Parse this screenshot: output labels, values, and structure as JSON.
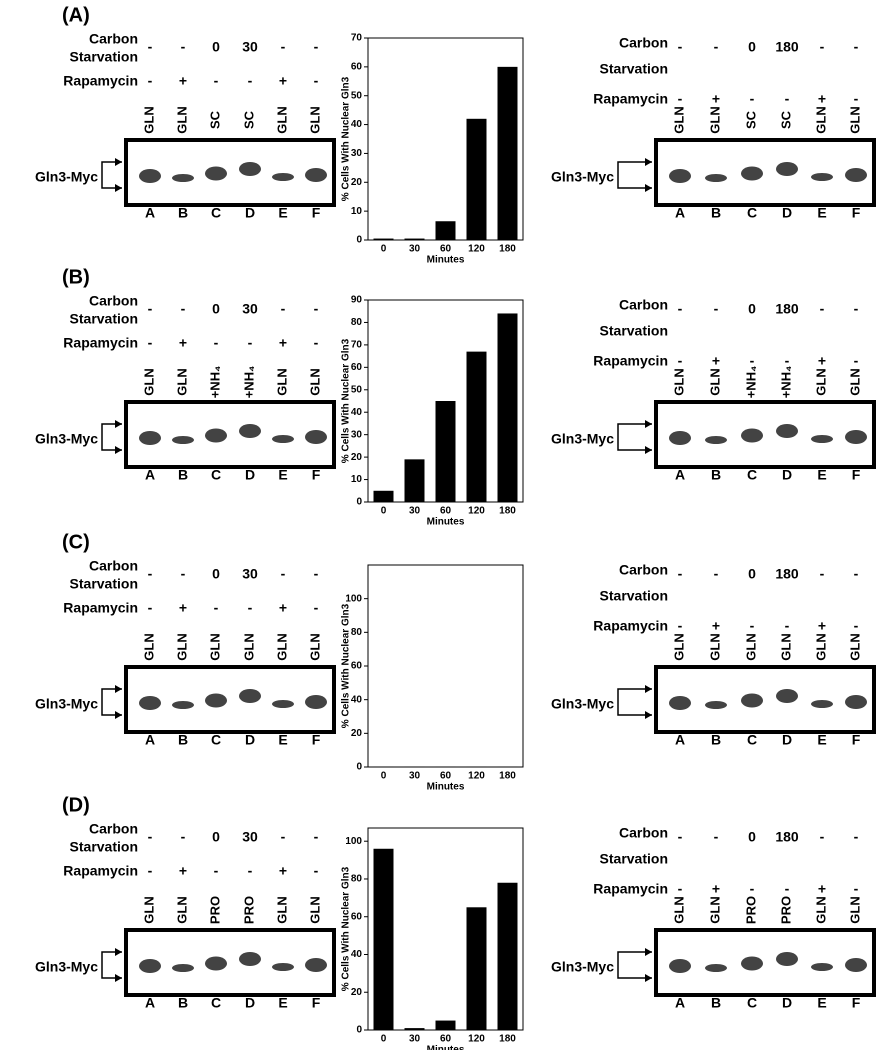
{
  "panels": [
    {
      "label": "(A)",
      "left": {
        "carbon_label": "Carbon",
        "starvation_label": "Starvation",
        "rapamycin_label": "Rapamycin",
        "carbon": [
          "-",
          "-",
          "0",
          "30",
          "-",
          "-"
        ],
        "rapamycin": [
          "-",
          "+",
          "-",
          "-",
          "+",
          "-"
        ],
        "lane_conditions": [
          "GLN",
          "GLN",
          "SC",
          "SC",
          "GLN",
          "GLN"
        ],
        "lanes": [
          "A",
          "B",
          "C",
          "D",
          "E",
          "F"
        ],
        "protein": "Gln3-Myc"
      },
      "right": {
        "carbon_label": "Carbon",
        "starvation_label": "Starvation",
        "rapamycin_label": "Rapamycin",
        "carbon": [
          "-",
          "-",
          "0",
          "180",
          "-",
          "-"
        ],
        "rapamycin": [
          "-",
          "+",
          "-",
          "-",
          "+",
          "-"
        ],
        "lane_conditions": [
          "GLN",
          "GLN",
          "SC",
          "SC",
          "GLN",
          "GLN"
        ],
        "lanes": [
          "A",
          "B",
          "C",
          "D",
          "E",
          "F"
        ],
        "protein": "Gln3-Myc"
      }
    },
    {
      "label": "(B)",
      "left": {
        "carbon_label": "Carbon",
        "starvation_label": "Starvation",
        "rapamycin_label": "Rapamycin",
        "carbon": [
          "-",
          "-",
          "0",
          "30",
          "-",
          "-"
        ],
        "rapamycin": [
          "-",
          "+",
          "-",
          "-",
          "+",
          "-"
        ],
        "lane_conditions": [
          "GLN",
          "GLN",
          "+NH₄",
          "+NH₄",
          "GLN",
          "GLN"
        ],
        "lanes": [
          "A",
          "B",
          "C",
          "D",
          "E",
          "F"
        ],
        "protein": "Gln3-Myc"
      },
      "right": {
        "carbon_label": "Carbon",
        "starvation_label": "Starvation",
        "rapamycin_label": "Rapamycin",
        "carbon": [
          "-",
          "-",
          "0",
          "180",
          "-",
          "-"
        ],
        "rapamycin": [
          "-",
          "+",
          "-",
          "-",
          "+",
          "-"
        ],
        "lane_conditions": [
          "GLN",
          "GLN",
          "+NH₄",
          "+NH₄",
          "GLN",
          "GLN"
        ],
        "lanes": [
          "A",
          "B",
          "C",
          "D",
          "E",
          "F"
        ],
        "protein": "Gln3-Myc"
      }
    },
    {
      "label": "(C)",
      "left": {
        "carbon_label": "Carbon",
        "starvation_label": "Starvation",
        "rapamycin_label": "Rapamycin",
        "carbon": [
          "-",
          "-",
          "0",
          "30",
          "-",
          "-"
        ],
        "rapamycin": [
          "-",
          "+",
          "-",
          "-",
          "+",
          "-"
        ],
        "lane_conditions": [
          "GLN",
          "GLN",
          "GLN",
          "GLN",
          "GLN",
          "GLN"
        ],
        "lanes": [
          "A",
          "B",
          "C",
          "D",
          "E",
          "F"
        ],
        "protein": "Gln3-Myc"
      },
      "right": {
        "carbon_label": "Carbon",
        "starvation_label": "Starvation",
        "rapamycin_label": "Rapamycin",
        "carbon": [
          "-",
          "-",
          "0",
          "180",
          "-",
          "-"
        ],
        "rapamycin": [
          "-",
          "+",
          "-",
          "-",
          "+",
          "-"
        ],
        "lane_conditions": [
          "GLN",
          "GLN",
          "GLN",
          "GLN",
          "GLN",
          "GLN"
        ],
        "lanes": [
          "A",
          "B",
          "C",
          "D",
          "E",
          "F"
        ],
        "protein": "Gln3-Myc"
      }
    },
    {
      "label": "(D)",
      "left": {
        "carbon_label": "Carbon",
        "starvation_label": "Starvation",
        "rapamycin_label": "Rapamycin",
        "carbon": [
          "-",
          "-",
          "0",
          "30",
          "-",
          "-"
        ],
        "rapamycin": [
          "-",
          "+",
          "-",
          "-",
          "+",
          "-"
        ],
        "lane_conditions": [
          "GLN",
          "GLN",
          "PRO",
          "PRO",
          "GLN",
          "GLN"
        ],
        "lanes": [
          "A",
          "B",
          "C",
          "D",
          "E",
          "F"
        ],
        "protein": "Gln3-Myc"
      },
      "right": {
        "carbon_label": "Carbon",
        "starvation_label": "Starvation",
        "rapamycin_label": "Rapamycin",
        "carbon": [
          "-",
          "-",
          "0",
          "180",
          "-",
          "-"
        ],
        "rapamycin": [
          "-",
          "+",
          "-",
          "-",
          "+",
          "-"
        ],
        "lane_conditions": [
          "GLN",
          "GLN",
          "PRO",
          "PRO",
          "GLN",
          "GLN"
        ],
        "lanes": [
          "A",
          "B",
          "C",
          "D",
          "E",
          "F"
        ],
        "protein": "Gln3-Myc"
      }
    }
  ],
  "chart_data": [
    {
      "type": "bar",
      "ylabel": "% Cells With Nuclear Gln3",
      "xlabel": "Minutes",
      "categories": [
        "0",
        "30",
        "60",
        "120",
        "180"
      ],
      "values": [
        0.5,
        0.5,
        6.5,
        42,
        60
      ],
      "color": "#000000",
      "ylim": [
        0,
        70
      ],
      "yticks": [
        0,
        10,
        20,
        30,
        40,
        50,
        60,
        70
      ]
    },
    {
      "type": "bar",
      "ylabel": "% Cells With Nuclear Gln3",
      "xlabel": "Minutes",
      "categories": [
        "0",
        "30",
        "60",
        "120",
        "180"
      ],
      "values": [
        5,
        19,
        45,
        67,
        84
      ],
      "color": "#000000",
      "ylim": [
        0,
        90
      ],
      "yticks": [
        0,
        10,
        20,
        30,
        40,
        50,
        60,
        70,
        80,
        90
      ]
    },
    {
      "type": "bar",
      "ylabel": "% Cells With Nuclear Gln3",
      "xlabel": "Minutes",
      "categories": [
        "0",
        "30",
        "60",
        "120",
        "180"
      ],
      "values": [
        0.3,
        0.3,
        0.3,
        0.3,
        0.3
      ],
      "color": "#000000",
      "ylim": [
        0,
        120
      ],
      "yticks": [
        0,
        20,
        40,
        60,
        80,
        100
      ]
    },
    {
      "type": "bar",
      "ylabel": "% Cells With Nuclear Gln3",
      "xlabel": "Minutes",
      "categories": [
        "0",
        "30",
        "60",
        "120",
        "180"
      ],
      "values": [
        96,
        1,
        5,
        65,
        78
      ],
      "color": "#000000",
      "ylim": [
        0,
        107
      ],
      "yticks": [
        0,
        20,
        40,
        60,
        80,
        100
      ]
    }
  ]
}
